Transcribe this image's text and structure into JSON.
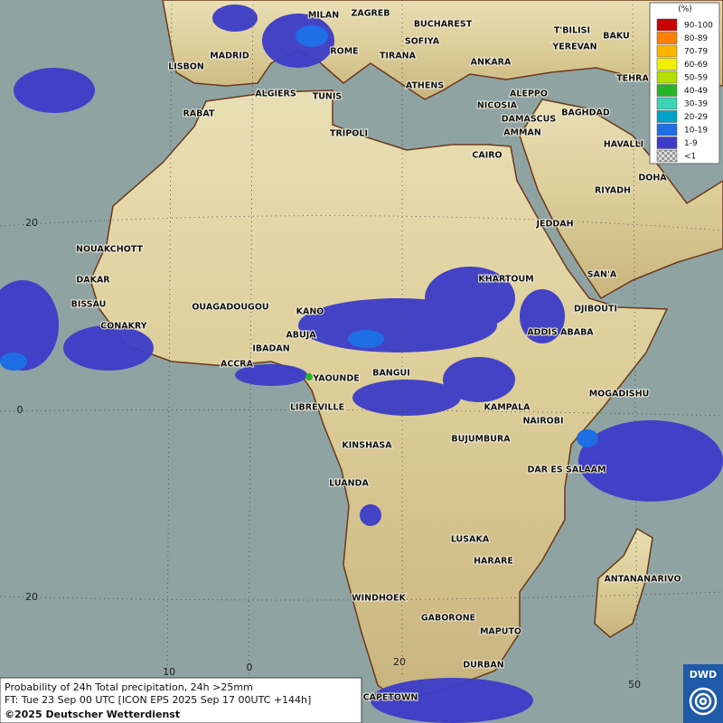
{
  "legend": {
    "title": "(%)",
    "items": [
      {
        "label": "90-100",
        "color": "#c80000"
      },
      {
        "label": "80-89",
        "color": "#ff7f00"
      },
      {
        "label": "70-79",
        "color": "#ffb400"
      },
      {
        "label": "60-69",
        "color": "#f0f000"
      },
      {
        "label": "50-59",
        "color": "#b4e000"
      },
      {
        "label": "40-49",
        "color": "#28b428"
      },
      {
        "label": "30-39",
        "color": "#3cd2b4"
      },
      {
        "label": "20-29",
        "color": "#00a0c8"
      },
      {
        "label": "10-19",
        "color": "#1e6ee6"
      },
      {
        "label": "1-9",
        "color": "#3c3cc8"
      },
      {
        "label": "<1",
        "color": "#b4b4b4"
      }
    ]
  },
  "cities": [
    "MILAN",
    "ZAGREB",
    "BUCHAREST",
    "SOFIYA",
    "T'BILISI",
    "BAKU",
    "YEREVAN",
    "LISBON",
    "MADRID",
    "ROME",
    "TIRANA",
    "ANKARA",
    "TEHRA",
    "ATHENS",
    "ALGIERS",
    "TUNIS",
    "ALEPPO",
    "RABAT",
    "NICOSIA",
    "DAMASCUS",
    "BAGHDAD",
    "TRIPOLI",
    "AMMAN",
    "HAVALLI",
    "CAIRO",
    "DOHA",
    "RIYADH",
    "JEDDAH",
    "NOUAKCHOTT",
    "SAN'A",
    "KHARTOUM",
    "DAKAR",
    "BISSAU",
    "OUAGADOUGOU",
    "KANO",
    "DJIBOUTI",
    "CONAKRY",
    "ABUJA",
    "ADDIS ABABA",
    "IBADAN",
    "ACCRA",
    "YAOUNDE",
    "BANGUI",
    "MOGADISHU",
    "LIBREVILLE",
    "KAMPALA",
    "NAIROBI",
    "BUJUMBURA",
    "KINSHASA",
    "DAR ES SALAAM",
    "LUANDA",
    "LUSAKA",
    "HARARE",
    "ANTANANARIVO",
    "WINDHOEK",
    "GABORONE",
    "MAPUTO",
    "DURBAN",
    "CAPETOWN"
  ],
  "graticule": [
    "20",
    "0",
    "20",
    "10",
    "0",
    "20",
    "50"
  ],
  "footer": {
    "line1": "Probability of 24h Total precipitation, 24h >25mm",
    "line2": "FT: Tue 23 Sep 00 UTC [ICON EPS 2025 Sep 17 00UTC +144h]",
    "line3": "©2025 Deutscher Wetterdienst"
  },
  "logo": "DWD"
}
